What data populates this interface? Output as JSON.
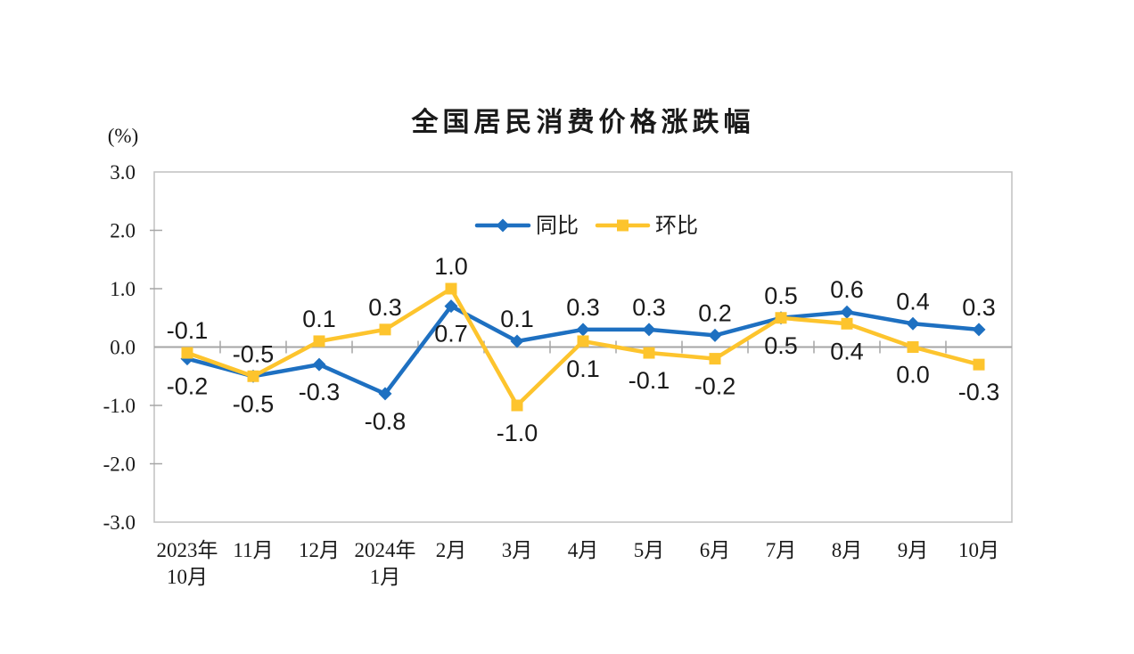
{
  "title": "全国居民消费价格涨跌幅",
  "colors": {
    "yoy_blue": "#1E70C1",
    "mom_yellow": "#FDC42D",
    "axis_line": "#A6A6A6",
    "plot_border": "#C0C0C0",
    "text": "#1A1A1A"
  },
  "chart_data": {
    "type": "line",
    "title": "全国居民消费价格涨跌幅",
    "ylabel": "(%)",
    "xlabel": "",
    "ylim": [
      -3.0,
      3.0
    ],
    "ytick_interval": 1.0,
    "yticks": [
      "3.0",
      "2.0",
      "1.0",
      "0.0",
      "-1.0",
      "-2.0",
      "-3.0"
    ],
    "grid": false,
    "legend_position": "top-center-inside",
    "categories": [
      "2023年|10月",
      "11月",
      "12月",
      "2024年|1月",
      "2月",
      "3月",
      "4月",
      "5月",
      "6月",
      "7月",
      "8月",
      "9月",
      "10月"
    ],
    "series": [
      {
        "key": "yoy",
        "name": "同比",
        "color": "#1E70C1",
        "marker": "diamond",
        "values": [
          -0.2,
          -0.5,
          -0.3,
          -0.8,
          0.7,
          0.1,
          0.3,
          0.3,
          0.2,
          0.5,
          0.6,
          0.4,
          0.3
        ],
        "labels": [
          "-0.2",
          "-0.5",
          "-0.3",
          "-0.8",
          "0.7",
          "0.1",
          "0.3",
          "0.3",
          "0.2",
          "0.5",
          "0.6",
          "0.4",
          "0.3"
        ],
        "label_side": [
          "below",
          "below",
          "below",
          "below",
          "below",
          "above",
          "above",
          "above",
          "above",
          "above",
          "above",
          "above",
          "above"
        ]
      },
      {
        "key": "mom",
        "name": "环比",
        "color": "#FDC42D",
        "marker": "square",
        "values": [
          -0.1,
          -0.5,
          0.1,
          0.3,
          1.0,
          -1.0,
          0.1,
          -0.1,
          -0.2,
          0.5,
          0.4,
          0.0,
          -0.3
        ],
        "labels": [
          "-0.1",
          "-0.5",
          "0.1",
          "0.3",
          "1.0",
          "-1.0",
          "0.1",
          "-0.1",
          "-0.2",
          "0.5",
          "0.4",
          "0.0",
          "-0.3"
        ],
        "label_side": [
          "above",
          "above",
          "above",
          "above",
          "above",
          "below",
          "below",
          "below",
          "below",
          "below",
          "below",
          "below",
          "below"
        ]
      }
    ]
  }
}
